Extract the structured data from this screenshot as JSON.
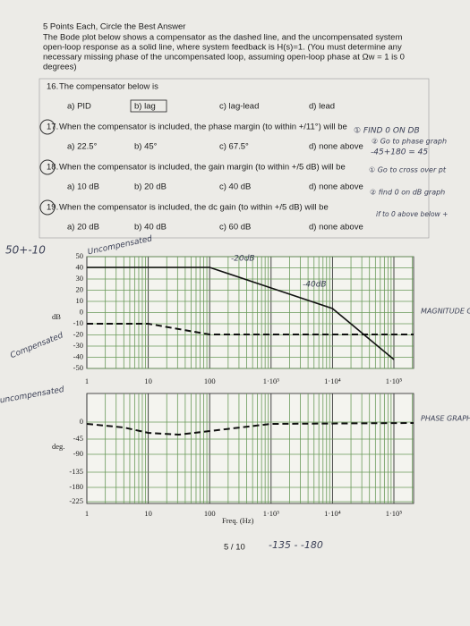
{
  "header": {
    "points": "5 Points Each, Circle the Best Answer",
    "intro": [
      "The Bode plot below shows a compensator as the dashed line, and the uncompensated system",
      "open-loop response as a solid line, where system feedback is H(s)=1.  (You must determine any",
      "necessary missing phase of the uncompensated loop, assuming open-loop phase at Ωw = 1 is 0",
      "degrees)"
    ]
  },
  "questions": [
    {
      "number": "16.",
      "text": "The compensator below is",
      "options": [
        "a) PID",
        "b) lag",
        "c) lag-lead",
        "d) lead"
      ]
    },
    {
      "number": "17.",
      "text": "When the compensator is included, the phase margin (to within +/11°) will be",
      "options": [
        "a) 22.5°",
        "b) 45°",
        "c) 67.5°",
        "d) none above"
      ]
    },
    {
      "number": "18.",
      "text": "When the compensator is included, the gain margin (to within +/5 dB) will be",
      "options": [
        "a) 10 dB",
        "b) 20 dB",
        "c) 40 dB",
        "d) none above"
      ]
    },
    {
      "number": "19.",
      "text": "When the compensator is included, the dc gain (to within +/5 dB) will be",
      "options": [
        "a) 20 dB",
        "b) 40 dB",
        "c) 60 dB",
        "d) none above"
      ]
    }
  ],
  "magnitude_plot": {
    "ylabel": "dB",
    "yticks": [
      "50",
      "40",
      "30",
      "20",
      "10",
      "0",
      "-10",
      "-20",
      "-30",
      "-40",
      "-50"
    ],
    "xticks": [
      "1",
      "10",
      "100",
      "1·10³",
      "1·10⁴",
      "1·10⁵"
    ]
  },
  "phase_plot": {
    "ylabel": "deg.",
    "yticks": [
      "0",
      "-45",
      "-90",
      "-135",
      "-180",
      "-225"
    ],
    "xticks": [
      "1",
      "10",
      "100",
      "1·10³",
      "1·10⁴",
      "1·10⁵"
    ],
    "xlabel": "Freq. (Hz)"
  },
  "page_number": "5 / 10",
  "handwriting": {
    "find_zero": "① FIND 0 ON DB",
    "go_phase": "② Go to phase graph",
    "phase_calc": "-45+180 = 45",
    "cross": "① Go to cross over pt",
    "find_db": "② find 0 on dB graph",
    "above_below": "if to 0 above below +",
    "range": "50+-10",
    "uncomp": "Uncompensated",
    "slope20": "-20dB",
    "slope40": "-40dB",
    "comp": "Compensated",
    "mag_graph": "MAGNITUDE GRAPH",
    "phase_graph": "PHASE GRAPH",
    "uncomp2": "uncompensated",
    "bottom": "-135 - -180"
  }
}
